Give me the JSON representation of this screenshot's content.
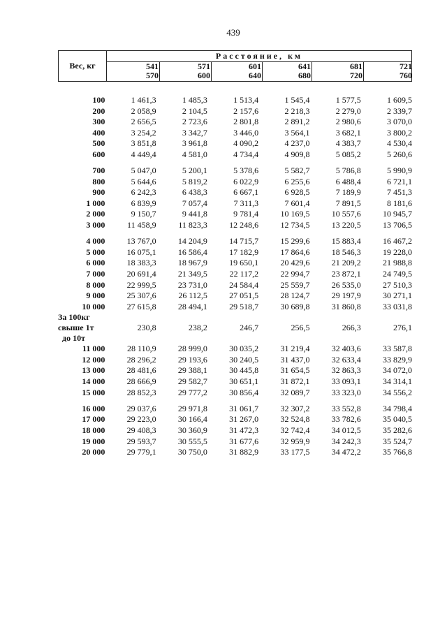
{
  "page_number": "439",
  "header": {
    "weight_label": "Вес, кг",
    "distance_label": "Расстояние, км",
    "ranges": [
      {
        "from": "541",
        "to": "570"
      },
      {
        "from": "571",
        "to": "600"
      },
      {
        "from": "601",
        "to": "640"
      },
      {
        "from": "641",
        "to": "680"
      },
      {
        "from": "681",
        "to": "720"
      },
      {
        "from": "721",
        "to": "760"
      }
    ]
  },
  "groups": [
    [
      {
        "w": "100",
        "v": [
          "1 461,3",
          "1 485,3",
          "1 513,4",
          "1 545,4",
          "1 577,5",
          "1 609,5"
        ]
      },
      {
        "w": "200",
        "v": [
          "2 058,9",
          "2 104,5",
          "2 157,6",
          "2 218,3",
          "2 279,0",
          "2 339,7"
        ]
      },
      {
        "w": "300",
        "v": [
          "2 656,5",
          "2 723,6",
          "2 801,8",
          "2 891,2",
          "2 980,6",
          "3 070,0"
        ]
      },
      {
        "w": "400",
        "v": [
          "3 254,2",
          "3 342,7",
          "3 446,0",
          "3 564,1",
          "3 682,1",
          "3 800,2"
        ]
      },
      {
        "w": "500",
        "v": [
          "3 851,8",
          "3 961,8",
          "4 090,2",
          "4 237,0",
          "4 383,7",
          "4 530,4"
        ]
      },
      {
        "w": "600",
        "v": [
          "4 449,4",
          "4 581,0",
          "4 734,4",
          "4 909,8",
          "5 085,2",
          "5 260,6"
        ]
      }
    ],
    [
      {
        "w": "700",
        "v": [
          "5 047,0",
          "5 200,1",
          "5 378,6",
          "5 582,7",
          "5 786,8",
          "5 990,9"
        ]
      },
      {
        "w": "800",
        "v": [
          "5 644,6",
          "5 819,2",
          "6 022,9",
          "6 255,6",
          "6 488,4",
          "6 721,1"
        ]
      },
      {
        "w": "900",
        "v": [
          "6 242,3",
          "6 438,3",
          "6 667,1",
          "6 928,5",
          "7 189,9",
          "7 451,3"
        ]
      },
      {
        "w": "1 000",
        "v": [
          "6 839,9",
          "7 057,4",
          "7 311,3",
          "7 601,4",
          "7 891,5",
          "8 181,6"
        ]
      },
      {
        "w": "2 000",
        "v": [
          "9 150,7",
          "9 441,8",
          "9 781,4",
          "10 169,5",
          "10 557,6",
          "10 945,7"
        ]
      },
      {
        "w": "3 000",
        "v": [
          "11 458,9",
          "11 823,3",
          "12 248,6",
          "12 734,5",
          "13 220,5",
          "13 706,5"
        ]
      }
    ],
    [
      {
        "w": "4 000",
        "v": [
          "13 767,0",
          "14 204,9",
          "14 715,7",
          "15 299,6",
          "15 883,4",
          "16 467,2"
        ]
      },
      {
        "w": "5 000",
        "v": [
          "16 075,1",
          "16 586,4",
          "17 182,9",
          "17 864,6",
          "18 546,3",
          "19 228,0"
        ]
      },
      {
        "w": "6 000",
        "v": [
          "18 383,3",
          "18 967,9",
          "19 650,1",
          "20 429,6",
          "21 209,2",
          "21 988,8"
        ]
      },
      {
        "w": "7 000",
        "v": [
          "20 691,4",
          "21 349,5",
          "22 117,2",
          "22 994,7",
          "23 872,1",
          "24 749,5"
        ]
      },
      {
        "w": "8 000",
        "v": [
          "22 999,5",
          "23 731,0",
          "24 584,4",
          "25 559,7",
          "26 535,0",
          "27 510,3"
        ]
      },
      {
        "w": "9 000",
        "v": [
          "25 307,6",
          "26 112,5",
          "27 051,5",
          "28 124,7",
          "29 197,9",
          "30 271,1"
        ]
      },
      {
        "w": "10 000",
        "v": [
          "27 615,8",
          "28 494,1",
          "29 518,7",
          "30 689,8",
          "31 860,8",
          "33 031,8"
        ]
      }
    ]
  ],
  "per100": {
    "label_lines": [
      "За 100кг",
      "свыше 1т",
      "до 10т"
    ],
    "v": [
      "230,8",
      "238,2",
      "246,7",
      "256,5",
      "266,3",
      "276,1"
    ]
  },
  "groups2": [
    [
      {
        "w": "11 000",
        "v": [
          "28 110,9",
          "28 999,0",
          "30 035,2",
          "31 219,4",
          "32 403,6",
          "33 587,8"
        ]
      },
      {
        "w": "12 000",
        "v": [
          "28 296,2",
          "29 193,6",
          "30 240,5",
          "31 437,0",
          "32 633,4",
          "33 829,9"
        ]
      },
      {
        "w": "13 000",
        "v": [
          "28 481,6",
          "29 388,1",
          "30 445,8",
          "31 654,5",
          "32 863,3",
          "34 072,0"
        ]
      },
      {
        "w": "14 000",
        "v": [
          "28 666,9",
          "29 582,7",
          "30 651,1",
          "31 872,1",
          "33 093,1",
          "34 314,1"
        ]
      },
      {
        "w": "15 000",
        "v": [
          "28 852,3",
          "29 777,2",
          "30 856,4",
          "32 089,7",
          "33 323,0",
          "34 556,2"
        ]
      }
    ],
    [
      {
        "w": "16 000",
        "v": [
          "29 037,6",
          "29 971,8",
          "31 061,7",
          "32 307,2",
          "33 552,8",
          "34 798,4"
        ]
      },
      {
        "w": "17 000",
        "v": [
          "29 223,0",
          "30 166,4",
          "31 267,0",
          "32 524,8",
          "33 782,6",
          "35 040,5"
        ]
      },
      {
        "w": "18 000",
        "v": [
          "29 408,3",
          "30 360,9",
          "31 472,3",
          "32 742,4",
          "34 012,5",
          "35 282,6"
        ]
      },
      {
        "w": "19 000",
        "v": [
          "29 593,7",
          "30 555,5",
          "31 677,6",
          "32 959,9",
          "34 242,3",
          "35 524,7"
        ]
      },
      {
        "w": "20 000",
        "v": [
          "29 779,1",
          "30 750,0",
          "31 882,9",
          "33 177,5",
          "34 472,2",
          "35 766,8"
        ]
      }
    ]
  ]
}
